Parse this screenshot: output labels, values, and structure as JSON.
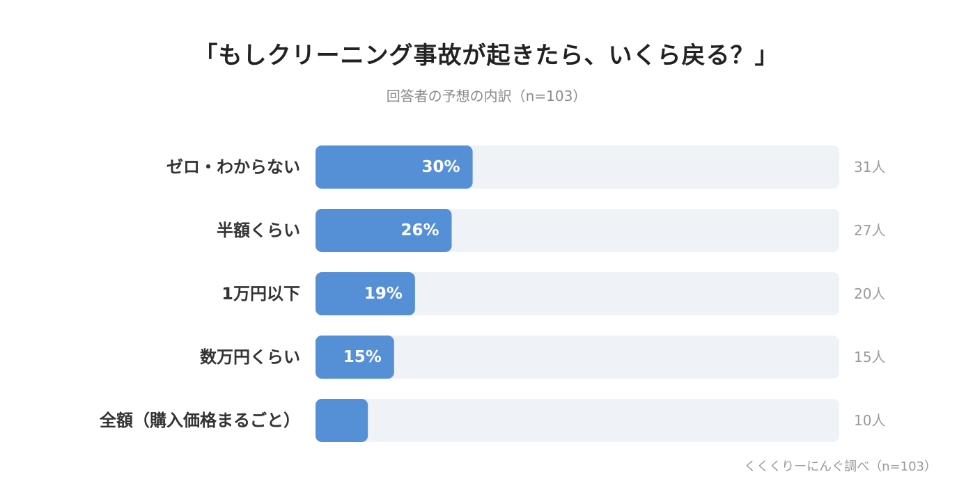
{
  "header": {
    "title": "「もしクリーニング事故が起きたら、いくら戻る？」",
    "subtitle": "回答者の予想の内訳（n=103）"
  },
  "footer": {
    "source": "くくくりーにんぐ調べ（n=103）"
  },
  "colors": {
    "bar": "#5590d6",
    "track": "#eff2f7",
    "label": "#333333",
    "count": "#9a9a9a"
  },
  "chart_data": {
    "type": "bar",
    "orientation": "horizontal",
    "title": "「もしクリーニング事故が起きたら、いくら戻る？」",
    "subtitle": "回答者の予想の内訳（n=103）",
    "categories": [
      "ゼロ・わからない",
      "半額くらい",
      "1万円以下",
      "数万円くらい",
      "全額（購入価格まるごと）"
    ],
    "values": [
      30,
      26,
      19,
      15,
      10
    ],
    "value_labels": [
      "30%",
      "26%",
      "19%",
      "15%",
      ""
    ],
    "counts": [
      "31人",
      "27人",
      "20人",
      "15人",
      "10人"
    ],
    "xlim": [
      0,
      100
    ],
    "grid": false
  }
}
